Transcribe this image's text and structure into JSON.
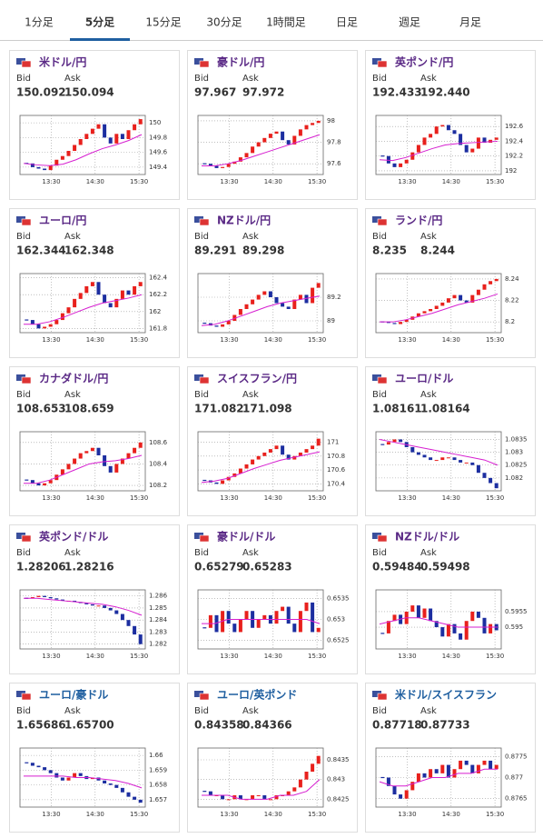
{
  "tabs": [
    "1分足",
    "5分足",
    "15分足",
    "30分足",
    "1時間足",
    "日足",
    "週足",
    "月足"
  ],
  "active_tab": 1,
  "bid_label": "Bid",
  "ask_label": "Ask",
  "xtick_labels": [
    "13:30",
    "14:30",
    "15:30"
  ],
  "up_color": "#e8201c",
  "down_color": "#1c2ea0",
  "ma_color": "#d61fd0",
  "cards": [
    {
      "title": "米ドル/円",
      "title_color": "#5b2a86",
      "bid": "150.092",
      "ask": "150.094",
      "ylim": [
        149.3,
        150.1
      ],
      "yticks": [
        150,
        149.8,
        149.6,
        149.4
      ],
      "closes": [
        149.45,
        149.4,
        149.38,
        149.36,
        149.42,
        149.5,
        149.55,
        149.62,
        149.7,
        149.78,
        149.85,
        149.92,
        149.98,
        149.8,
        149.72,
        149.85,
        149.78,
        149.9,
        149.98,
        150.05
      ],
      "ma": [
        149.45,
        149.43,
        149.42,
        149.44,
        149.5,
        149.58,
        149.65,
        149.7,
        149.76,
        149.84
      ]
    },
    {
      "title": "豪ドル/円",
      "title_color": "#5b2a86",
      "bid": "97.967",
      "ask": "97.972",
      "ylim": [
        97.5,
        98.05
      ],
      "yticks": [
        98,
        97.8,
        97.6
      ],
      "closes": [
        97.6,
        97.58,
        97.56,
        97.57,
        97.6,
        97.62,
        97.66,
        97.7,
        97.76,
        97.8,
        97.84,
        97.88,
        97.9,
        97.82,
        97.78,
        97.86,
        97.92,
        97.96,
        97.98,
        98.0
      ],
      "ma": [
        97.58,
        97.58,
        97.6,
        97.63,
        97.67,
        97.71,
        97.75,
        97.79,
        97.83,
        97.87
      ]
    },
    {
      "title": "英ポンド/円",
      "title_color": "#5b2a86",
      "bid": "192.433",
      "ask": "192.440",
      "ylim": [
        191.95,
        192.75
      ],
      "yticks": [
        192.6,
        192.4,
        192.2,
        192
      ],
      "closes": [
        192.2,
        192.1,
        192.05,
        192.1,
        192.15,
        192.25,
        192.35,
        192.45,
        192.5,
        192.6,
        192.62,
        192.55,
        192.5,
        192.35,
        192.25,
        192.3,
        192.45,
        192.38,
        192.42,
        192.45
      ],
      "ma": [
        192.15,
        192.14,
        192.18,
        192.24,
        192.3,
        192.35,
        192.37,
        192.38,
        192.39,
        192.4
      ]
    },
    {
      "title": "ユーロ/円",
      "title_color": "#5b2a86",
      "bid": "162.344",
      "ask": "162.348",
      "ylim": [
        161.75,
        162.45
      ],
      "yticks": [
        162.4,
        162.2,
        162,
        161.8
      ],
      "closes": [
        161.9,
        161.85,
        161.8,
        161.82,
        161.85,
        161.9,
        161.98,
        162.05,
        162.15,
        162.22,
        162.3,
        162.35,
        162.2,
        162.1,
        162.05,
        162.15,
        162.25,
        162.2,
        162.3,
        162.35
      ],
      "ma": [
        161.85,
        161.85,
        161.88,
        161.93,
        161.99,
        162.05,
        162.1,
        162.13,
        162.16,
        162.2
      ]
    },
    {
      "title": "NZドル/円",
      "title_color": "#5b2a86",
      "bid": "89.291",
      "ask": "89.298",
      "ylim": [
        88.9,
        89.4
      ],
      "yticks": [
        89.2,
        89
      ],
      "closes": [
        88.98,
        88.96,
        88.95,
        88.97,
        89.0,
        89.05,
        89.1,
        89.14,
        89.18,
        89.22,
        89.25,
        89.2,
        89.15,
        89.12,
        89.1,
        89.18,
        89.22,
        89.15,
        89.28,
        89.32
      ],
      "ma": [
        88.96,
        88.97,
        89.0,
        89.04,
        89.08,
        89.12,
        89.15,
        89.17,
        89.19,
        89.21
      ]
    },
    {
      "title": "ランド/円",
      "title_color": "#5b2a86",
      "bid": "8.235",
      "ask": "8.244",
      "ylim": [
        8.19,
        8.245
      ],
      "yticks": [
        8.24,
        8.22,
        8.2
      ],
      "closes": [
        8.2,
        8.199,
        8.198,
        8.2,
        8.202,
        8.205,
        8.208,
        8.21,
        8.212,
        8.215,
        8.218,
        8.222,
        8.225,
        8.22,
        8.218,
        8.225,
        8.23,
        8.235,
        8.238,
        8.24
      ],
      "ma": [
        8.2,
        8.2,
        8.202,
        8.205,
        8.208,
        8.212,
        8.216,
        8.219,
        8.222,
        8.226
      ]
    },
    {
      "title": "カナダドル/円",
      "title_color": "#5b2a86",
      "bid": "108.653",
      "ask": "108.659",
      "ylim": [
        108.15,
        108.7
      ],
      "yticks": [
        108.6,
        108.4,
        108.2
      ],
      "closes": [
        108.25,
        108.22,
        108.2,
        108.22,
        108.25,
        108.3,
        108.35,
        108.4,
        108.45,
        108.5,
        108.52,
        108.55,
        108.48,
        108.38,
        108.32,
        108.4,
        108.45,
        108.5,
        108.55,
        108.6
      ],
      "ma": [
        108.22,
        108.22,
        108.25,
        108.3,
        108.35,
        108.4,
        108.42,
        108.43,
        108.45,
        108.48
      ]
    },
    {
      "title": "スイスフラン/円",
      "title_color": "#5b2a86",
      "bid": "171.082",
      "ask": "171.098",
      "ylim": [
        170.3,
        171.15
      ],
      "yticks": [
        171,
        170.8,
        170.6,
        170.4
      ],
      "closes": [
        170.45,
        170.42,
        170.4,
        170.45,
        170.5,
        170.55,
        170.62,
        170.68,
        170.75,
        170.8,
        170.85,
        170.9,
        170.95,
        170.82,
        170.75,
        170.8,
        170.85,
        170.9,
        170.95,
        171.05
      ],
      "ma": [
        170.42,
        170.44,
        170.48,
        170.55,
        170.62,
        170.68,
        170.74,
        170.78,
        170.82,
        170.86
      ]
    },
    {
      "title": "ユーロ/ドル",
      "title_color": "#5b2a86",
      "bid": "1.08161",
      "ask": "1.08164",
      "ylim": [
        1.0815,
        1.0838
      ],
      "yticks": [
        1.0835,
        1.083,
        1.0825,
        1.082
      ],
      "closes": [
        1.0833,
        1.0834,
        1.0835,
        1.0834,
        1.0832,
        1.083,
        1.0829,
        1.0828,
        1.0827,
        1.0827,
        1.0828,
        1.0828,
        1.0827,
        1.0826,
        1.0826,
        1.0825,
        1.0822,
        1.082,
        1.0818,
        1.0816
      ],
      "ma": [
        1.0835,
        1.0834,
        1.0833,
        1.0832,
        1.0831,
        1.083,
        1.0829,
        1.0828,
        1.0827,
        1.0825
      ]
    },
    {
      "title": "英ポンド/ドル",
      "title_color": "#5b2a86",
      "bid": "1.28206",
      "ask": "1.28216",
      "ylim": [
        1.2816,
        1.2865
      ],
      "yticks": [
        1.286,
        1.285,
        1.284,
        1.283,
        1.282
      ],
      "closes": [
        1.2858,
        1.2859,
        1.286,
        1.2859,
        1.2858,
        1.2857,
        1.2856,
        1.2856,
        1.2855,
        1.2854,
        1.2853,
        1.2852,
        1.2852,
        1.285,
        1.2848,
        1.2845,
        1.284,
        1.2835,
        1.2828,
        1.282
      ],
      "ma": [
        1.2858,
        1.2858,
        1.2857,
        1.2856,
        1.2855,
        1.2854,
        1.2853,
        1.2851,
        1.2848,
        1.2844
      ]
    },
    {
      "title": "豪ドル/ドル",
      "title_color": "#5b2a86",
      "bid": "0.65279",
      "ask": "0.65283",
      "ylim": [
        0.6523,
        0.6537
      ],
      "yticks": [
        0.6535,
        0.653,
        0.6525
      ],
      "closes": [
        0.6528,
        0.6531,
        0.6527,
        0.6532,
        0.6529,
        0.6527,
        0.653,
        0.6532,
        0.6528,
        0.653,
        0.6531,
        0.6529,
        0.6532,
        0.6533,
        0.6529,
        0.6527,
        0.6532,
        0.6534,
        0.6527,
        0.6528
      ],
      "ma": [
        0.6529,
        0.6529,
        0.653,
        0.653,
        0.653,
        0.653,
        0.653,
        0.653,
        0.653,
        0.6529
      ]
    },
    {
      "title": "NZドル/ドル",
      "title_color": "#5b2a86",
      "bid": "0.59484",
      "ask": "0.59498",
      "ylim": [
        0.5943,
        0.5962
      ],
      "yticks": [
        0.5955,
        0.595
      ],
      "closes": [
        0.5948,
        0.5952,
        0.5954,
        0.5951,
        0.5955,
        0.5957,
        0.5953,
        0.5956,
        0.5952,
        0.595,
        0.5947,
        0.5951,
        0.5948,
        0.5946,
        0.5952,
        0.5955,
        0.5953,
        0.5948,
        0.5951,
        0.5949
      ],
      "ma": [
        0.5951,
        0.5952,
        0.5953,
        0.5953,
        0.5952,
        0.5951,
        0.595,
        0.595,
        0.595,
        0.595
      ]
    },
    {
      "title": "ユーロ/豪ドル",
      "title_color": "#1f5fa0",
      "bid": "1.65686",
      "ask": "1.65700",
      "ylim": [
        1.6565,
        1.6605
      ],
      "yticks": [
        1.66,
        1.659,
        1.658,
        1.657
      ],
      "closes": [
        1.6595,
        1.6593,
        1.6592,
        1.659,
        1.6588,
        1.6585,
        1.6583,
        1.6585,
        1.6588,
        1.6586,
        1.6584,
        1.6585,
        1.6583,
        1.6581,
        1.658,
        1.6578,
        1.6575,
        1.6572,
        1.657,
        1.6568
      ],
      "ma": [
        1.6586,
        1.6586,
        1.6586,
        1.6586,
        1.6585,
        1.6585,
        1.6584,
        1.6583,
        1.6581,
        1.6578
      ]
    },
    {
      "title": "ユーロ/英ポンド",
      "title_color": "#1f5fa0",
      "bid": "0.84358",
      "ask": "0.84366",
      "ylim": [
        0.8423,
        0.8438
      ],
      "yticks": [
        0.8435,
        0.843,
        0.8425
      ],
      "closes": [
        0.8427,
        0.8426,
        0.8426,
        0.8425,
        0.8425,
        0.8426,
        0.8425,
        0.8425,
        0.8426,
        0.8426,
        0.8425,
        0.8425,
        0.8426,
        0.8426,
        0.8427,
        0.8428,
        0.843,
        0.8432,
        0.8434,
        0.8436
      ],
      "ma": [
        0.8426,
        0.8426,
        0.8426,
        0.8425,
        0.8425,
        0.8425,
        0.8426,
        0.8426,
        0.8427,
        0.843
      ]
    },
    {
      "title": "米ドル/スイスフラン",
      "title_color": "#1f5fa0",
      "bid": "0.87718",
      "ask": "0.87733",
      "ylim": [
        0.8763,
        0.8777
      ],
      "yticks": [
        0.8775,
        0.877,
        0.8765
      ],
      "closes": [
        0.877,
        0.8768,
        0.8766,
        0.8765,
        0.8767,
        0.8769,
        0.8771,
        0.877,
        0.8772,
        0.8771,
        0.8773,
        0.877,
        0.8772,
        0.8774,
        0.8773,
        0.8771,
        0.8773,
        0.8774,
        0.8772,
        0.8773
      ],
      "ma": [
        0.8769,
        0.8768,
        0.8768,
        0.8769,
        0.877,
        0.877,
        0.8771,
        0.8771,
        0.8772,
        0.8772
      ]
    }
  ]
}
